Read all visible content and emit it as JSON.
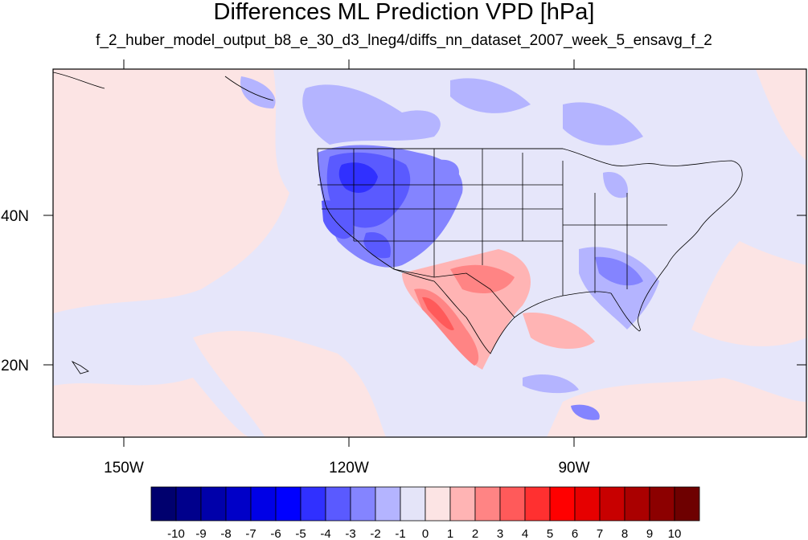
{
  "title": "Differences ML Prediction VPD [hPa]",
  "subtitle": "f_2_huber_model_output_b8_e_30_d3_lneg4/diffs_nn_dataset_2007_week_5_ensavg_f_2",
  "axes": {
    "x_ticks": [
      "150W",
      "120W",
      "90W"
    ],
    "y_ticks": [
      "40N",
      "20N"
    ]
  },
  "colorbar": {
    "labels": [
      "-10",
      "-9",
      "-8",
      "-7",
      "-6",
      "-5",
      "-4",
      "-3",
      "-2",
      "-1",
      "0",
      "1",
      "2",
      "3",
      "4",
      "5",
      "6",
      "7",
      "8",
      "9",
      "10"
    ],
    "colors": [
      "#00006e",
      "#00008c",
      "#0000aa",
      "#0000c8",
      "#0000e6",
      "#0000ff",
      "#3030ff",
      "#5a5aff",
      "#8484ff",
      "#b4b4ff",
      "#e4e4f8",
      "#fce4e4",
      "#ffb4b4",
      "#ff8484",
      "#ff5a5a",
      "#ff3030",
      "#ff0000",
      "#e60000",
      "#c80000",
      "#aa0000",
      "#8c0000",
      "#6e0000"
    ]
  },
  "map": {
    "background": "#e6e6fa",
    "ocean_warm": "#fce4e4"
  }
}
